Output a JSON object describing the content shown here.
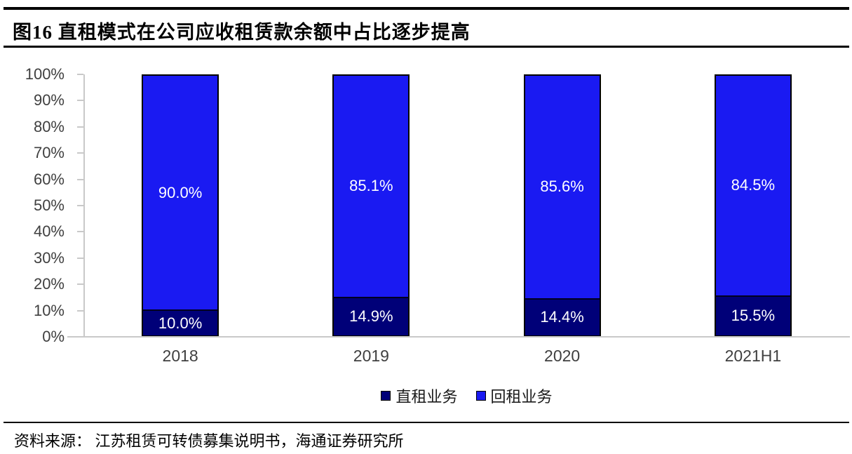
{
  "figure": {
    "title": "图16 直租模式在公司应收租赁款余额中占比逐步提高",
    "source": "资料来源： 江苏租赁可转债募集说明书，海通证券研究所"
  },
  "chart_data": {
    "type": "bar",
    "stacked": true,
    "title": "直租模式在公司应收租赁款余额中占比逐步提高",
    "categories": [
      "2018",
      "2019",
      "2020",
      "2021H1"
    ],
    "series": [
      {
        "name": "直租业务",
        "color": "#000078",
        "values": [
          10.0,
          14.9,
          14.4,
          15.5
        ],
        "labels": [
          "10.0%",
          "14.9%",
          "14.4%",
          "15.5%"
        ]
      },
      {
        "name": "回租业务",
        "color": "#1A1AF2",
        "values": [
          90.0,
          85.1,
          85.6,
          84.5
        ],
        "labels": [
          "90.0%",
          "85.1%",
          "85.6%",
          "84.5%"
        ]
      }
    ],
    "yticks": [
      "100%",
      "90%",
      "80%",
      "70%",
      "60%",
      "50%",
      "40%",
      "30%",
      "20%",
      "10%",
      "0%"
    ],
    "ylim": [
      0,
      100
    ],
    "legend_position": "bottom",
    "grid": false,
    "axis_color": "#c9c9c9",
    "tick_label_color": "#3f3f3f",
    "bar_label_color": "#ffffff",
    "bar_border_color": "#000000"
  }
}
